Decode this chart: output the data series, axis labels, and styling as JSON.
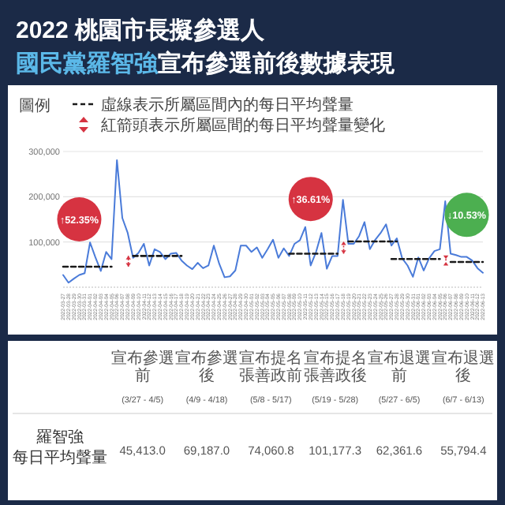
{
  "chart_data": {
    "type": "line",
    "title": "2022 桃園市長擬參選人",
    "subtitle": "國民黨羅智強宣布參選前後數據表現",
    "legend": "top",
    "legend_title": "圖例",
    "grid": "y",
    "ylim": [
      0,
      300000
    ],
    "yticks": [
      {
        "value": 100000,
        "label": "100,000"
      },
      {
        "value": 200000,
        "label": "200,000"
      },
      {
        "value": 300000,
        "label": "300,000"
      }
    ],
    "xlim": [
      "2022-03-27",
      "2022-06-13"
    ],
    "xticks": [
      "2022-03-27",
      "2022-03-28",
      "2022-03-29",
      "2022-03-30",
      "2022-03-31",
      "2022-04-01",
      "2022-04-02",
      "2022-04-03",
      "2022-04-04",
      "2022-04-05",
      "2022-04-06",
      "2022-04-07",
      "2022-04-08",
      "2022-04-09",
      "2022-04-10",
      "2022-04-11",
      "2022-04-12",
      "2022-04-13",
      "2022-04-14",
      "2022-04-15",
      "2022-04-16",
      "2022-04-17",
      "2022-04-18",
      "2022-04-19",
      "2022-04-20",
      "2022-04-21",
      "2022-04-22",
      "2022-04-23",
      "2022-04-24",
      "2022-04-25",
      "2022-04-26",
      "2022-04-27",
      "2022-04-28",
      "2022-04-29",
      "2022-04-30",
      "2022-05-01",
      "2022-05-02",
      "2022-05-03",
      "2022-05-04",
      "2022-05-05",
      "2022-05-06",
      "2022-05-07",
      "2022-05-08",
      "2022-05-09",
      "2022-05-10",
      "2022-05-11",
      "2022-05-12",
      "2022-05-13",
      "2022-05-14",
      "2022-05-15",
      "2022-05-16",
      "2022-05-17",
      "2022-05-18",
      "2022-05-19",
      "2022-05-20",
      "2022-05-21",
      "2022-05-22",
      "2022-05-23",
      "2022-05-24",
      "2022-05-25",
      "2022-05-26",
      "2022-05-27",
      "2022-05-28",
      "2022-05-29",
      "2022-05-30",
      "2022-05-31",
      "2022-06-01",
      "2022-06-02",
      "2022-06-03",
      "2022-06-04",
      "2022-06-05",
      "2022-06-06",
      "2022-06-07",
      "2022-06-08",
      "2022-06-09",
      "2022-06-10",
      "2022-06-11",
      "2022-06-12",
      "2022-06-13"
    ],
    "series": [
      {
        "color": "#4a7bd9",
        "line_style": "solid",
        "x": [
          "2022-03-27",
          "2022-03-28",
          "2022-03-29",
          "2022-03-30",
          "2022-03-31",
          "2022-04-01",
          "2022-04-02",
          "2022-04-03",
          "2022-04-04",
          "2022-04-05",
          "2022-04-06",
          "2022-04-07",
          "2022-04-08",
          "2022-04-09",
          "2022-04-10",
          "2022-04-11",
          "2022-04-12",
          "2022-04-13",
          "2022-04-14",
          "2022-04-15",
          "2022-04-16",
          "2022-04-17",
          "2022-04-18",
          "2022-04-19",
          "2022-04-20",
          "2022-04-21",
          "2022-04-22",
          "2022-04-23",
          "2022-04-24",
          "2022-04-25",
          "2022-04-26",
          "2022-04-27",
          "2022-04-28",
          "2022-04-29",
          "2022-04-30",
          "2022-05-01",
          "2022-05-02",
          "2022-05-03",
          "2022-05-04",
          "2022-05-05",
          "2022-05-06",
          "2022-05-07",
          "2022-05-08",
          "2022-05-09",
          "2022-05-10",
          "2022-05-11",
          "2022-05-12",
          "2022-05-13",
          "2022-05-14",
          "2022-05-15",
          "2022-05-16",
          "2022-05-17",
          "2022-05-18",
          "2022-05-19",
          "2022-05-20",
          "2022-05-21",
          "2022-05-22",
          "2022-05-23",
          "2022-05-24",
          "2022-05-25",
          "2022-05-26",
          "2022-05-27",
          "2022-05-28",
          "2022-05-29",
          "2022-05-30",
          "2022-05-31",
          "2022-06-01",
          "2022-06-02",
          "2022-06-03",
          "2022-06-04",
          "2022-06-05",
          "2022-06-06",
          "2022-06-07",
          "2022-06-08",
          "2022-06-09",
          "2022-06-10",
          "2022-06-11",
          "2022-06-12",
          "2022-06-13"
        ],
        "values": [
          27000,
          10000,
          19000,
          27000,
          31000,
          99000,
          66000,
          36000,
          78000,
          62000,
          281000,
          153000,
          120000,
          65000,
          76000,
          96000,
          48000,
          84000,
          78000,
          62000,
          74000,
          76000,
          59000,
          48000,
          40000,
          54000,
          42000,
          48000,
          92000,
          52000,
          22000,
          24000,
          37000,
          92000,
          92000,
          78000,
          88000,
          65000,
          84000,
          105000,
          65000,
          86000,
          69000,
          96000,
          104000,
          133000,
          48000,
          78000,
          120000,
          41000,
          69000,
          69000,
          193000,
          96000,
          96000,
          113000,
          144000,
          84000,
          105000,
          120000,
          139000,
          92000,
          108000,
          64000,
          48000,
          23000,
          66000,
          37000,
          64000,
          80000,
          84000,
          190000,
          74000,
          71000,
          67000,
          67000,
          59000,
          42000,
          32000
        ]
      },
      {
        "name": "虛線表示所屬區間內的每日平均聲量",
        "color": "#1a1a1a",
        "line_style": "dashed",
        "x": [
          "2022-03-27",
          "2022-04-05"
        ],
        "values": [
          45413.0,
          45413.0
        ]
      },
      {
        "color": "#1a1a1a",
        "line_style": "dashed",
        "x": [
          "2022-04-09",
          "2022-04-18"
        ],
        "values": [
          69187.0,
          69187.0
        ]
      },
      {
        "color": "#1a1a1a",
        "line_style": "dashed",
        "x": [
          "2022-05-08",
          "2022-05-17"
        ],
        "values": [
          74060.8,
          74060.8
        ]
      },
      {
        "color": "#1a1a1a",
        "line_style": "dashed",
        "x": [
          "2022-05-19",
          "2022-05-28"
        ],
        "values": [
          101177.3,
          101177.3
        ]
      },
      {
        "color": "#1a1a1a",
        "line_style": "dashed",
        "x": [
          "2022-05-27",
          "2022-06-05"
        ],
        "values": [
          62361.6,
          62361.6
        ]
      },
      {
        "color": "#1a1a1a",
        "line_style": "dashed",
        "x": [
          "2022-06-07",
          "2022-06-13"
        ],
        "values": [
          55794.4,
          55794.4
        ]
      }
    ],
    "annotations": [
      {
        "text": "↑52.35%",
        "x": "2022-03-30",
        "y": 150000
      },
      {
        "text": "↑36.61%",
        "x": "2022-05-12",
        "y": 195000
      },
      {
        "text": "↓10.53%",
        "x": "2022-06-10",
        "y": 160000
      },
      "紅箭頭表示所屬區間的每日平均聲量變化",
      "羅智強",
      "每日平均聲量",
      "宣布參選前",
      "宣布參選後",
      "宣布提名張善政前",
      "宣布提名張善政後",
      "宣布退選前",
      "宣布退選後",
      "(3/27 - 4/5)",
      "(4/9 - 4/18)",
      "(5/8 - 5/17)",
      "(5/19 - 5/28)",
      "(5/27 - 6/5)",
      "(6/7 - 6/13)",
      "45,413.0",
      "69,187.0",
      "74,060.8",
      "101,177.3",
      "62,361.6",
      "55,794.4"
    ]
  }
}
